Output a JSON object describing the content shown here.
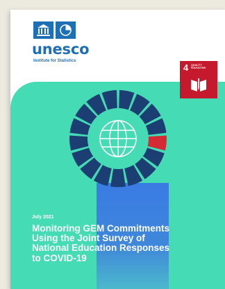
{
  "brand": {
    "name": "unesco",
    "subtitle": "Institute for Statistics",
    "logo_icons": [
      "temple-icon",
      "uis-circle-icon"
    ],
    "color": "#1f6fb5"
  },
  "sdg_badge": {
    "number": "4",
    "label": "QUALITY\nEDUCATION",
    "icon": "open-book-pencil-icon",
    "color": "#c5192d"
  },
  "cover": {
    "date": "July 2021",
    "title_lines": [
      "Monitoring GEM Commitments",
      "Using the Joint Survey of",
      "National Education Responses",
      "to COVID-19"
    ],
    "colors": {
      "band": "#44dbb5",
      "ring": "#1b3f73",
      "highlight": "#d42a36",
      "globe": "#4cc4ba",
      "bar": "#3a7be3"
    }
  }
}
